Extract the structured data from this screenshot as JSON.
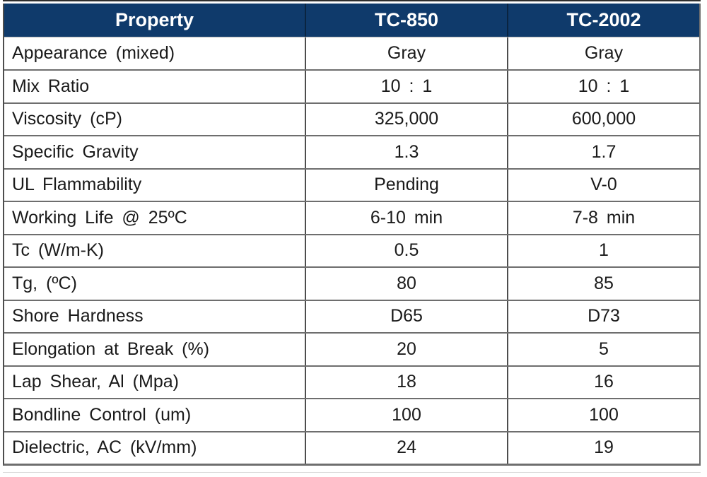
{
  "table": {
    "header": {
      "property": "Property",
      "col1": "TC-850",
      "col2": "TC-2002"
    },
    "rows": [
      [
        "Appearance (mixed)",
        "Gray",
        "Gray"
      ],
      [
        "Mix Ratio",
        "10 : 1",
        "10 : 1"
      ],
      [
        "Viscosity (cP)",
        "325,000",
        "600,000"
      ],
      [
        "Specific Gravity",
        "1.3",
        "1.7"
      ],
      [
        "UL Flammability",
        "Pending",
        "V-0"
      ],
      [
        "Working Life @ 25ºC",
        "6-10 min",
        "7-8 min"
      ],
      [
        "Tc (W/m-K)",
        "0.5",
        "1"
      ],
      [
        "Tg, (ºC)",
        "80",
        "85"
      ],
      [
        "Shore Hardness",
        "D65",
        "D73"
      ],
      [
        "Elongation at Break (%)",
        "20",
        "5"
      ],
      [
        "Lap Shear, Al (Mpa)",
        "18",
        "16"
      ],
      [
        "Bondline Control (um)",
        "100",
        "100"
      ],
      [
        "Dielectric, AC (kV/mm)",
        "24",
        "19"
      ]
    ],
    "colors": {
      "header_bg": "#0F3A6B",
      "header_text": "#FFFFFF",
      "body_text": "#1A1A1A",
      "grid_line": "#6E6E6E",
      "column_line": "#4D4D4D"
    }
  }
}
